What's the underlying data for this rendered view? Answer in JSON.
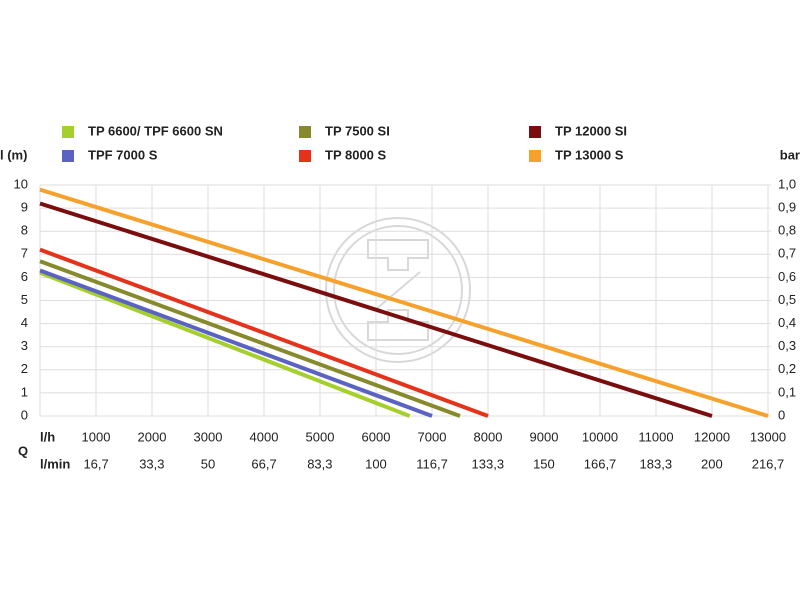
{
  "chart_data": {
    "type": "line",
    "y_label": "l (m)",
    "y2_label": "bar",
    "x_label": "l/h",
    "x2_label": "l/min",
    "x_group_label": "Q",
    "xlim": [
      0,
      13000
    ],
    "xticks": [
      1000,
      2000,
      3000,
      4000,
      5000,
      6000,
      7000,
      8000,
      9000,
      10000,
      11000,
      12000,
      13000
    ],
    "x2lim": [
      0,
      216.7
    ],
    "x2ticks": [
      {
        "value": 16.7,
        "label": "16,7"
      },
      {
        "value": 33.3,
        "label": "33,3"
      },
      50,
      {
        "value": 66.7,
        "label": "66,7"
      },
      {
        "value": 83.3,
        "label": "83,3"
      },
      100,
      {
        "value": 116.7,
        "label": "116,7"
      },
      {
        "value": 133.3,
        "label": "133,3"
      },
      150,
      {
        "value": 166.7,
        "label": "166,7"
      },
      {
        "value": 183.3,
        "label": "183,3"
      },
      200,
      {
        "value": 216.7,
        "label": "216,7"
      }
    ],
    "ylim": [
      0,
      10
    ],
    "yticks": [
      0,
      1,
      2,
      3,
      4,
      5,
      6,
      7,
      8,
      9,
      10
    ],
    "y2lim": [
      0,
      1
    ],
    "y2ticks": [
      0,
      {
        "value": 0.1,
        "label": "0,1"
      },
      {
        "value": 0.2,
        "label": "0,2"
      },
      {
        "value": 0.3,
        "label": "0,3"
      },
      {
        "value": 0.4,
        "label": "0,4"
      },
      {
        "value": 0.5,
        "label": "0,5"
      },
      {
        "value": 0.6,
        "label": "0,6"
      },
      {
        "value": 0.7,
        "label": "0,7"
      },
      {
        "value": 0.8,
        "label": "0,8"
      },
      {
        "value": 0.9,
        "label": "0,9"
      },
      {
        "value": 1,
        "label": "1,0"
      }
    ],
    "grid": true,
    "series": [
      {
        "name": "TP 6600/ TPF 6600 SN",
        "color": "#a5cf2c",
        "x": [
          0,
          6600
        ],
        "values": [
          6.2,
          0
        ]
      },
      {
        "name": "TPF 7000 S",
        "color": "#5a62c2",
        "x": [
          0,
          7000
        ],
        "values": [
          6.3,
          0
        ]
      },
      {
        "name": "TP 7500 SI",
        "color": "#878a2c",
        "x": [
          0,
          7500
        ],
        "values": [
          6.7,
          0
        ]
      },
      {
        "name": "TP 8000 S",
        "color": "#e4331a",
        "x": [
          0,
          8000
        ],
        "values": [
          7.2,
          0
        ]
      },
      {
        "name": "TP 12000 SI",
        "color": "#7a0d0d",
        "x": [
          0,
          12000
        ],
        "values": [
          9.2,
          0
        ]
      },
      {
        "name": "TP 13000 S",
        "color": "#f5a12c",
        "x": [
          0,
          13000
        ],
        "values": [
          9.8,
          0
        ]
      }
    ]
  }
}
